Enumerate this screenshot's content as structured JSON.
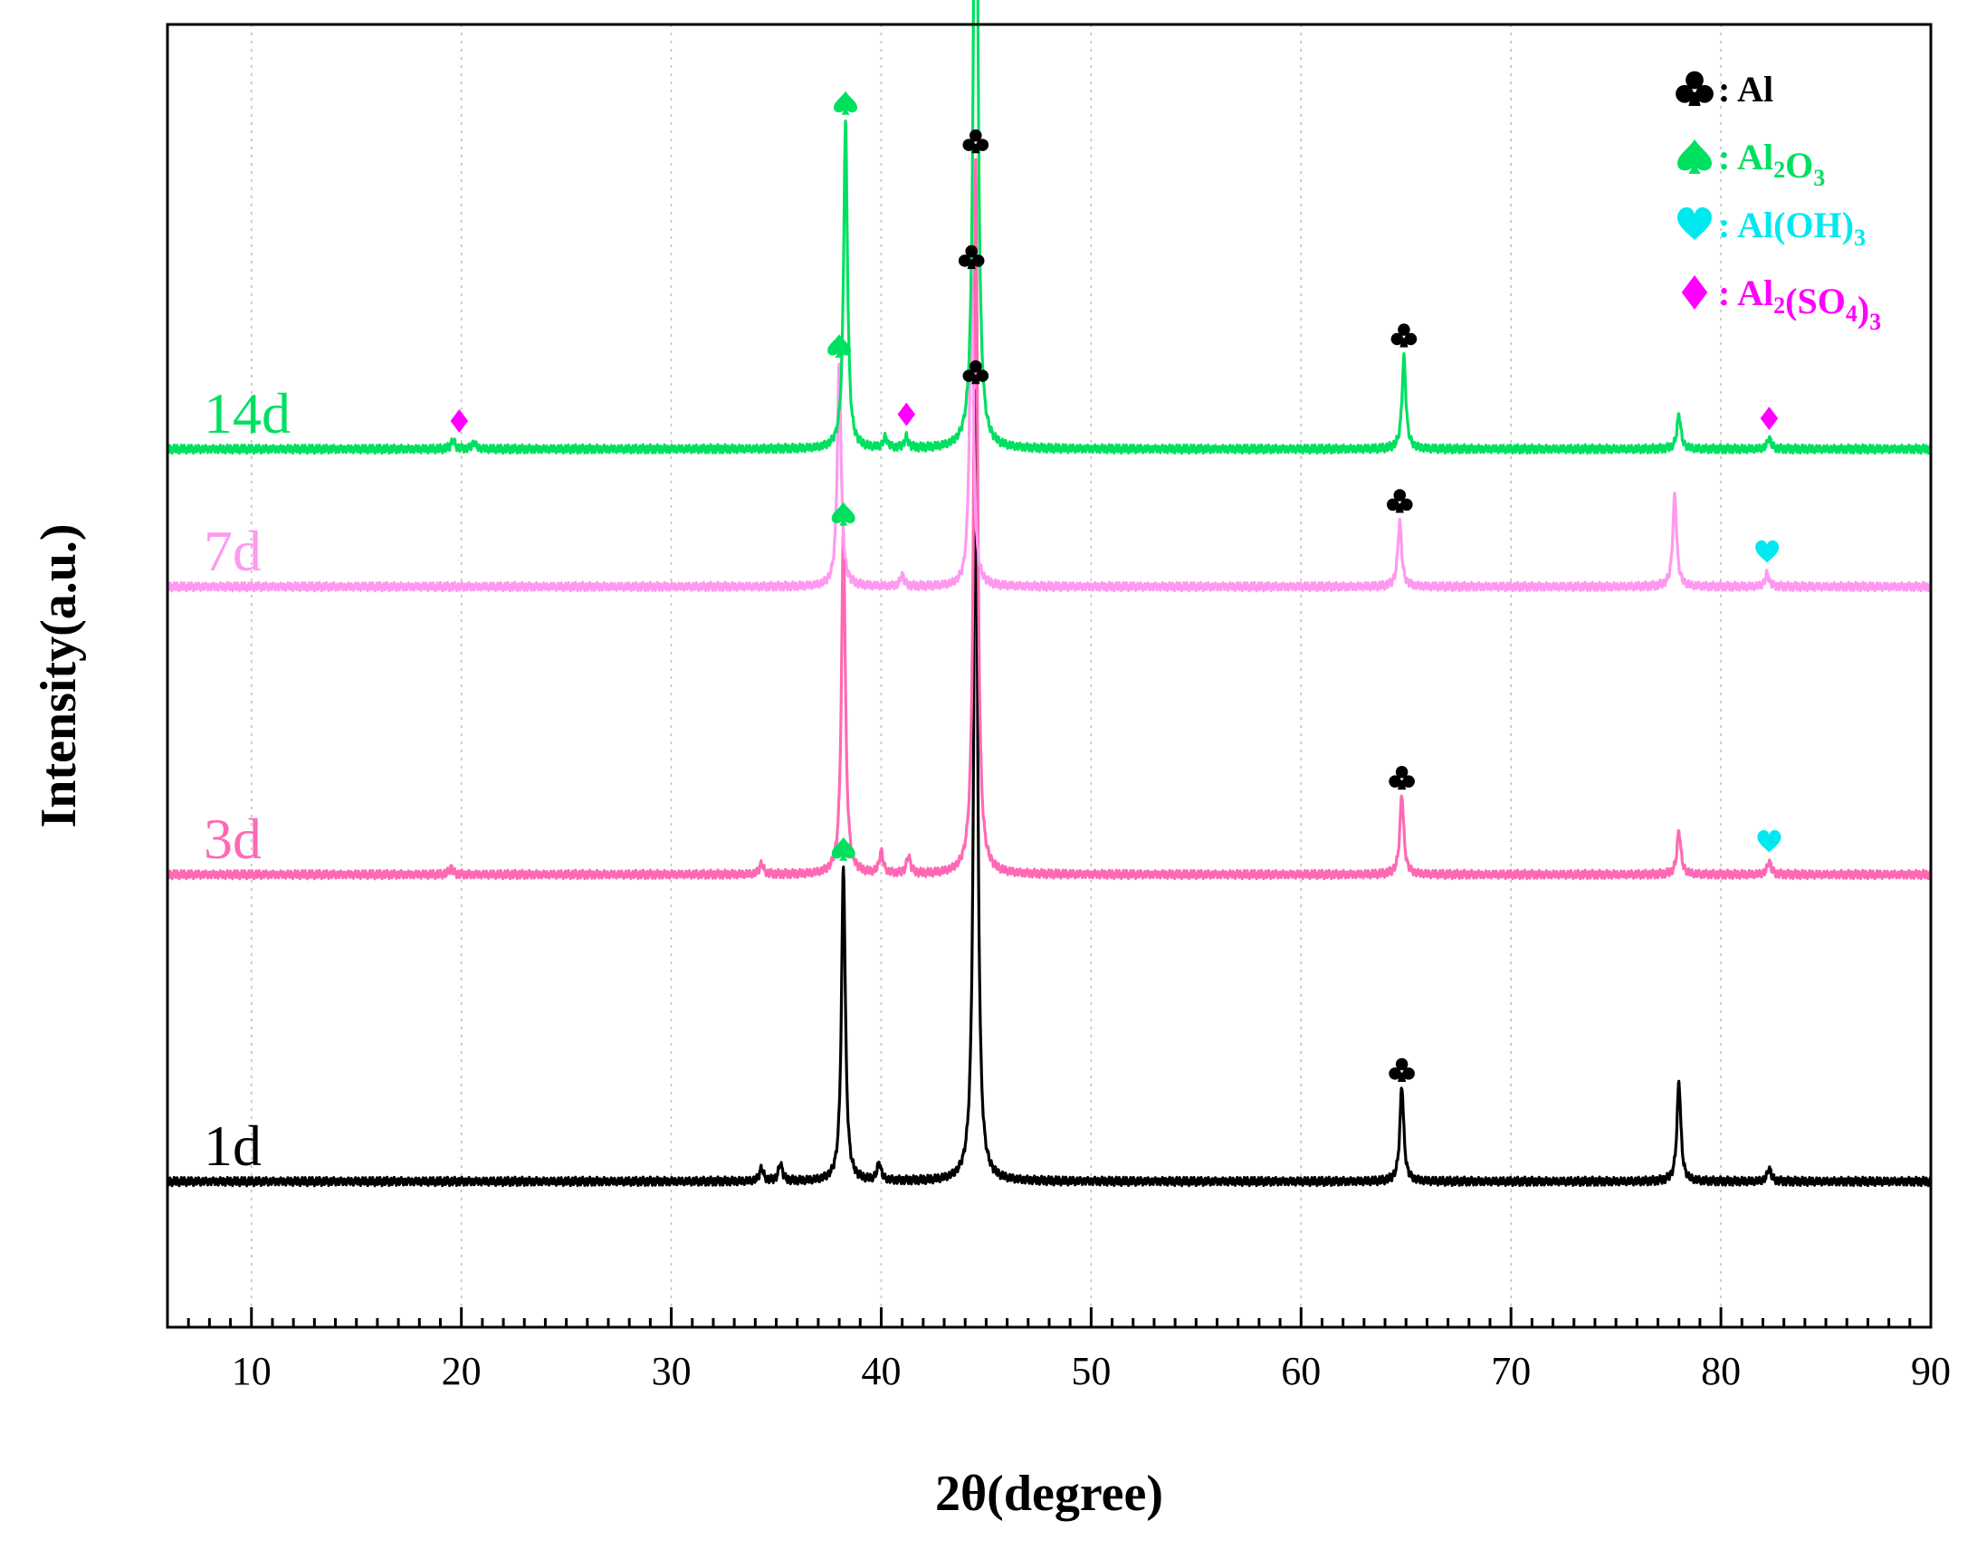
{
  "chart_data": {
    "type": "line",
    "title": "",
    "xlabel": "2θ(degree)",
    "ylabel": "Intensity(a.u.)",
    "xlim": [
      6,
      90
    ],
    "x_ticks": [
      10,
      20,
      30,
      40,
      50,
      60,
      70,
      80,
      90
    ],
    "x_minor_step": 1,
    "grid": "vertical dotted at major ticks",
    "legend_position": "top-right",
    "colors": {
      "al": "#000000",
      "al2o3": "#00e060",
      "aloh3": "#00e8f0",
      "al2so43": "#ff00ff",
      "series_1d": "#000000",
      "series_3d": "#ff69b4",
      "series_7d": "#ff99f0",
      "series_14d": "#00e060"
    },
    "legend": [
      {
        "symbol": "club",
        "color": "#000000",
        "parts": [
          [
            ": Al",
            ""
          ]
        ]
      },
      {
        "symbol": "spade",
        "color": "#00e060",
        "parts": [
          [
            ": Al",
            ""
          ],
          [
            "2",
            "sub"
          ],
          [
            "O",
            ""
          ],
          [
            "3",
            "sub"
          ]
        ]
      },
      {
        "symbol": "heart",
        "color": "#00e8f0",
        "parts": [
          [
            ": Al(OH)",
            ""
          ],
          [
            "3",
            "sub"
          ]
        ]
      },
      {
        "symbol": "diamond",
        "color": "#ff00ff",
        "parts": [
          [
            ": Al",
            ""
          ],
          [
            "2",
            "sub"
          ],
          [
            "(SO",
            ""
          ],
          [
            "4",
            "sub"
          ],
          [
            ")",
            ""
          ],
          [
            "3",
            "sub"
          ]
        ]
      }
    ],
    "series": [
      {
        "name": "1d",
        "color": "#000000",
        "peaks": [
          [
            34.3,
            0.6
          ],
          [
            35.2,
            0.8
          ],
          [
            38.2,
            14.5
          ],
          [
            39.9,
            0.8
          ],
          [
            44.5,
            36.5
          ],
          [
            64.8,
            4.4
          ],
          [
            78.0,
            4.6
          ],
          [
            82.3,
            0.6
          ]
        ],
        "markers": [
          {
            "x": 38.2,
            "symbol": "spade",
            "color": "#00e060"
          },
          {
            "x": 44.5,
            "symbol": "club",
            "color": "#000000"
          },
          {
            "x": 64.8,
            "symbol": "club",
            "color": "#000000"
          }
        ]
      },
      {
        "name": "3d",
        "color": "#ff69b4",
        "peaks": [
          [
            19.5,
            0.3
          ],
          [
            34.3,
            0.5
          ],
          [
            38.2,
            15.8
          ],
          [
            40.0,
            1.0
          ],
          [
            41.3,
            0.8
          ],
          [
            44.5,
            33.0
          ],
          [
            64.8,
            3.7
          ],
          [
            78.0,
            2.0
          ],
          [
            82.3,
            0.6
          ]
        ],
        "markers": [
          {
            "x": 38.2,
            "symbol": "spade",
            "color": "#00e060"
          },
          {
            "x": 44.5,
            "symbol": "club",
            "color": "#000000"
          },
          {
            "x": 64.8,
            "symbol": "club",
            "color": "#000000"
          },
          {
            "x": 82.3,
            "symbol": "heart",
            "color": "#00e8f0"
          }
        ]
      },
      {
        "name": "7d",
        "color": "#ff99f0",
        "peaks": [
          [
            38.0,
            10.2
          ],
          [
            41.0,
            0.5
          ],
          [
            44.3,
            14.4
          ],
          [
            64.7,
            3.0
          ],
          [
            77.8,
            4.2
          ],
          [
            82.2,
            0.6
          ]
        ],
        "markers": [
          {
            "x": 38.0,
            "symbol": "spade",
            "color": "#00e060"
          },
          {
            "x": 44.3,
            "symbol": "club",
            "color": "#000000"
          },
          {
            "x": 64.7,
            "symbol": "club",
            "color": "#000000"
          },
          {
            "x": 82.2,
            "symbol": "heart",
            "color": "#00e8f0"
          }
        ]
      },
      {
        "name": "14d",
        "color": "#00e060",
        "peaks": [
          [
            19.6,
            0.4
          ],
          [
            20.6,
            0.3
          ],
          [
            38.3,
            15.0
          ],
          [
            40.2,
            0.5
          ],
          [
            41.2,
            0.5
          ],
          [
            44.5,
            39.0
          ],
          [
            64.9,
            4.2
          ],
          [
            78.0,
            1.6
          ],
          [
            82.3,
            0.5
          ]
        ],
        "markers": [
          {
            "x": 19.9,
            "symbol": "diamond",
            "color": "#ff00ff"
          },
          {
            "x": 38.3,
            "symbol": "spade",
            "color": "#00e060"
          },
          {
            "x": 41.2,
            "symbol": "diamond",
            "color": "#ff00ff"
          },
          {
            "x": 44.5,
            "symbol": "club",
            "color": "#000000"
          },
          {
            "x": 64.9,
            "symbol": "club",
            "color": "#000000"
          },
          {
            "x": 82.3,
            "symbol": "diamond",
            "color": "#ff00ff"
          }
        ]
      }
    ]
  }
}
